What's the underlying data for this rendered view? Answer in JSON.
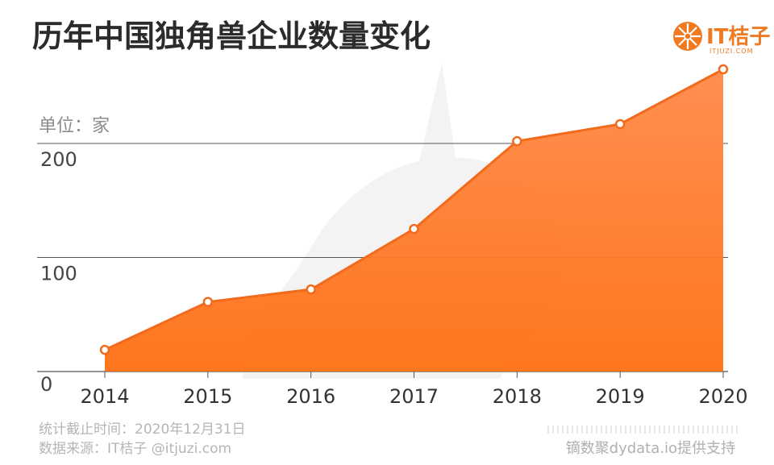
{
  "title": "历年中国独角兽企业数量变化",
  "logo": {
    "text": "IT桔子",
    "sub": "ITJUZI.COM"
  },
  "footer": {
    "date_line": "统计截止时间：2020年12月31日",
    "source_line": "数据来源：IT桔子 @itjuzi.com",
    "credit": "镝数聚dydata.io提供支持"
  },
  "colors": {
    "fill_top": "#ff8a4a",
    "fill_bottom": "#ff7014",
    "line": "#f26a1b",
    "grid": "#555555"
  },
  "chart_data": {
    "type": "area",
    "unit_label": "单位：家",
    "categories": [
      "2014",
      "2015",
      "2016",
      "2017",
      "2018",
      "2019",
      "2020"
    ],
    "series": [
      {
        "values": [
          19,
          61,
          72,
          125,
          202,
          217,
          265
        ]
      }
    ],
    "y_ticks": [
      0,
      100,
      200
    ],
    "ylim": [
      0,
      280
    ],
    "grid": true
  }
}
